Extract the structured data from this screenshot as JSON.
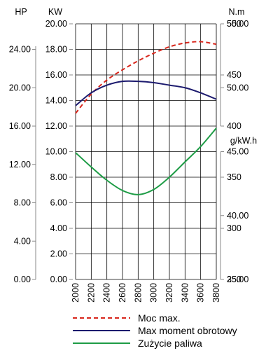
{
  "chart_data": {
    "type": "line",
    "x": [
      2000,
      2200,
      2400,
      2600,
      2800,
      3000,
      3200,
      3400,
      3600,
      3800
    ],
    "xlim": [
      2000,
      3800
    ],
    "axes": {
      "hp": {
        "unit": "HP",
        "ticks": [
          "0.00",
          "4.00",
          "8.00",
          "12.00",
          "16.00",
          "20.00",
          "24.00"
        ],
        "range": [
          0,
          26.67
        ]
      },
      "kw": {
        "unit": "KW",
        "ticks": [
          "0.00",
          "2.00",
          "4.00",
          "6.00",
          "8.00",
          "10.00",
          "12.00",
          "14.00",
          "16.00",
          "18.00",
          "20.00"
        ],
        "range": [
          0,
          20
        ]
      },
      "torque": {
        "unit": "N.m",
        "ticks": [
          "35.00",
          "40.00",
          "45.00",
          "50.00",
          "55.00"
        ],
        "range": [
          35,
          55
        ]
      },
      "fuel": {
        "unit": "g/kW.h",
        "ticks": [
          "250",
          "300",
          "350",
          "400",
          "450",
          "500"
        ],
        "range": [
          250,
          500
        ]
      }
    },
    "series": [
      {
        "name": "Moc max.",
        "axis": "kw",
        "color": "#d8261c",
        "dash": true,
        "values": [
          13.0,
          14.5,
          15.6,
          16.4,
          17.1,
          17.7,
          18.2,
          18.5,
          18.6,
          18.4
        ]
      },
      {
        "name": "Max moment obrotowy",
        "axis": "torque",
        "color": "#1c1a6e",
        "dash": false,
        "values": [
          48.6,
          49.6,
          50.2,
          50.5,
          50.5,
          50.4,
          50.2,
          50.0,
          49.6,
          49.1
        ]
      },
      {
        "name": "Zużycie paliwa",
        "axis": "fuel",
        "color": "#1e9c46",
        "dash": false,
        "values": [
          374,
          360,
          347,
          337,
          333,
          338,
          350,
          365,
          380,
          398
        ]
      }
    ],
    "grid": true,
    "legend": "bottom"
  }
}
